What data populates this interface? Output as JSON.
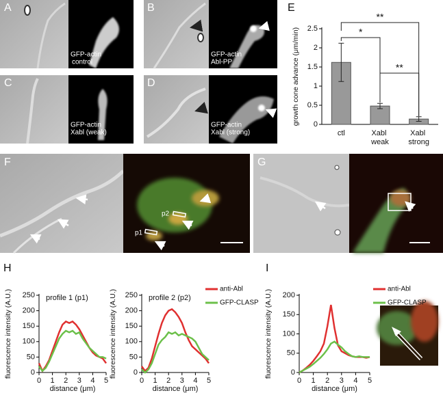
{
  "images": [
    {
      "letter": "A",
      "caption": [
        "GFP-actin",
        "control"
      ]
    },
    {
      "letter": "B",
      "caption": [
        "GFP-actin",
        "Abl-PP"
      ]
    },
    {
      "letter": "C",
      "caption": [
        "GFP-actin",
        "Xabl (weak)"
      ]
    },
    {
      "letter": "D",
      "caption": [
        "GFP-actin",
        "Xabl (strong)"
      ]
    },
    {
      "letter": "F",
      "markers": [
        "p1",
        "p2"
      ]
    },
    {
      "letter": "G"
    }
  ],
  "chart_data": [
    {
      "type": "bar",
      "panel": "E",
      "ylabel": "growth cone advance (μm/min)",
      "categories": [
        "ctl",
        "Xabl weak",
        "Xabl strong"
      ],
      "values": [
        1.62,
        0.48,
        0.14
      ],
      "errors": [
        0.5,
        0.07,
        0.06
      ],
      "color": "#999999",
      "ylim": [
        0,
        2.5
      ],
      "yticks": [
        0,
        0.5,
        1,
        1.5,
        2,
        2.5
      ],
      "annotations": [
        "*",
        "**",
        "**"
      ]
    },
    {
      "type": "line",
      "panel": "H",
      "title": "profile 1 (p1)",
      "xlabel": "distance (μm)",
      "ylabel": "fluorescence intensity (A.U.)",
      "x": [
        0,
        0.25,
        0.5,
        0.75,
        1,
        1.25,
        1.5,
        1.75,
        2,
        2.25,
        2.5,
        2.75,
        3,
        3.25,
        3.5,
        3.75,
        4,
        4.25,
        4.5,
        4.75,
        5
      ],
      "series": [
        {
          "color": "#e03030",
          "values": [
            30,
            5,
            20,
            40,
            70,
            100,
            130,
            155,
            165,
            160,
            165,
            155,
            140,
            120,
            100,
            80,
            65,
            55,
            50,
            45,
            30
          ]
        },
        {
          "color": "#6cc04a",
          "values": [
            20,
            5,
            15,
            35,
            60,
            85,
            110,
            125,
            135,
            130,
            135,
            125,
            130,
            110,
            95,
            80,
            70,
            60,
            50,
            50,
            45
          ]
        }
      ],
      "xlim": [
        0,
        5
      ],
      "xticks": [
        0,
        1,
        2,
        3,
        4,
        5
      ],
      "ylim": [
        0,
        250
      ],
      "yticks": [
        0,
        50,
        100,
        150,
        200,
        250
      ]
    },
    {
      "type": "line",
      "title": "profile 2 (p2)",
      "xlabel": "distance (μm)",
      "ylabel": "fluorescence intensity (A.U.)",
      "x": [
        0,
        0.25,
        0.5,
        0.75,
        1,
        1.25,
        1.5,
        1.75,
        2,
        2.25,
        2.5,
        2.75,
        3,
        3.25,
        3.5,
        3.75,
        4,
        4.25,
        4.5,
        4.75,
        5
      ],
      "series": [
        {
          "name": "anti-Abl",
          "color": "#e03030",
          "values": [
            20,
            5,
            15,
            45,
            85,
            125,
            160,
            185,
            200,
            205,
            195,
            180,
            160,
            130,
            105,
            85,
            75,
            65,
            55,
            45,
            30
          ]
        },
        {
          "name": "GFP-CLASP",
          "color": "#6cc04a",
          "values": [
            10,
            0,
            10,
            30,
            60,
            90,
            105,
            115,
            130,
            125,
            130,
            120,
            125,
            120,
            115,
            110,
            100,
            80,
            60,
            50,
            40
          ]
        }
      ],
      "xlim": [
        0,
        5
      ],
      "xticks": [
        0,
        1,
        2,
        3,
        4,
        5
      ],
      "ylim": [
        0,
        250
      ],
      "yticks": [
        0,
        50,
        100,
        150,
        200,
        250
      ],
      "legend": true
    },
    {
      "type": "line",
      "panel": "I",
      "xlabel": "distance (μm)",
      "ylabel": "fluorescence intensity (A.U.)",
      "x": [
        0,
        0.25,
        0.5,
        0.75,
        1,
        1.25,
        1.5,
        1.75,
        2,
        2.25,
        2.5,
        2.75,
        3,
        3.25,
        3.5,
        3.75,
        4,
        4.25,
        4.5,
        4.75,
        5
      ],
      "series": [
        {
          "name": "anti-Abl",
          "color": "#e03030",
          "values": [
            0,
            5,
            12,
            20,
            30,
            42,
            55,
            75,
            120,
            175,
            115,
            70,
            55,
            50,
            45,
            42,
            40,
            40,
            40,
            38,
            40
          ]
        },
        {
          "name": "GFP-CLASP",
          "color": "#6cc04a",
          "values": [
            0,
            5,
            10,
            15,
            22,
            30,
            38,
            48,
            60,
            75,
            80,
            72,
            65,
            55,
            48,
            42,
            40,
            42,
            40,
            40,
            40
          ]
        }
      ],
      "xlim": [
        0,
        5
      ],
      "xticks": [
        0,
        1,
        2,
        3,
        4,
        5
      ],
      "ylim": [
        0,
        200
      ],
      "yticks": [
        0,
        50,
        100,
        150,
        200
      ],
      "legend": true
    }
  ]
}
